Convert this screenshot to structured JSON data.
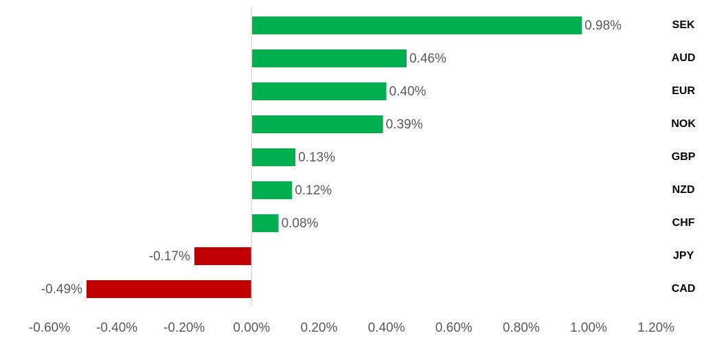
{
  "chart_data": {
    "type": "bar",
    "orientation": "horizontal",
    "categories": [
      "SEK",
      "AUD",
      "EUR",
      "NOK",
      "GBP",
      "NZD",
      "CHF",
      "JPY",
      "CAD"
    ],
    "values": [
      0.98,
      0.46,
      0.4,
      0.39,
      0.13,
      0.12,
      0.08,
      -0.17,
      -0.49
    ],
    "value_labels": [
      "0.98%",
      "0.46%",
      "0.40%",
      "0.39%",
      "0.13%",
      "0.12%",
      "0.08%",
      "-0.17%",
      "-0.49%"
    ],
    "positive_color": "#00b050",
    "negative_color": "#c00000",
    "xlim": [
      -0.6,
      1.2
    ],
    "xticks": [
      {
        "value": -0.6,
        "label": "-0.60%"
      },
      {
        "value": -0.4,
        "label": "-0.40%"
      },
      {
        "value": -0.2,
        "label": "-0.20%"
      },
      {
        "value": 0,
        "label": "0.00%"
      },
      {
        "value": 0.2,
        "label": "0.20%"
      },
      {
        "value": 0.4,
        "label": "0.40%"
      },
      {
        "value": 0.6,
        "label": "0.60%"
      },
      {
        "value": 0.8,
        "label": "0.80%"
      },
      {
        "value": 1.0,
        "label": "1.00%"
      },
      {
        "value": 1.2,
        "label": "1.20%"
      }
    ],
    "grid": false
  }
}
